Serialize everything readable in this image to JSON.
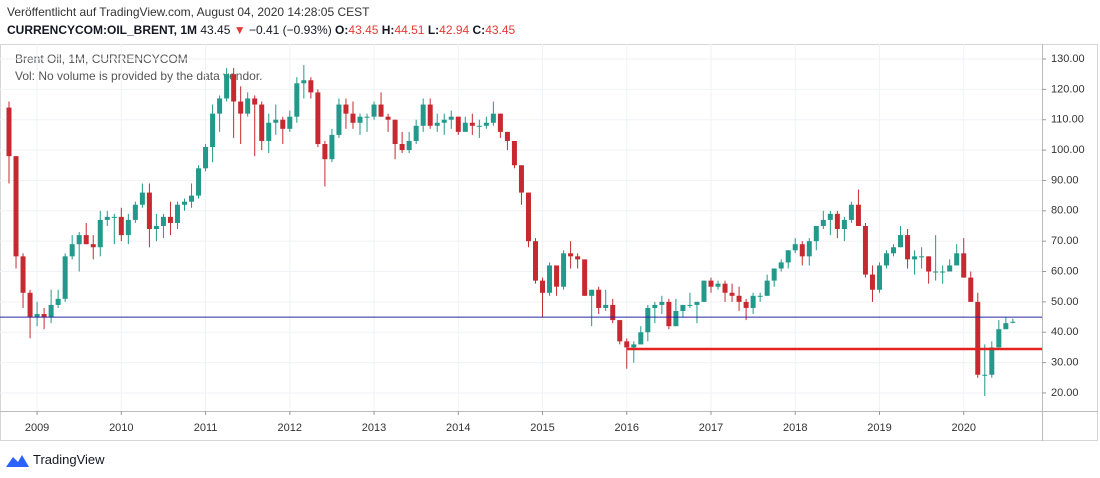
{
  "header": {
    "published": "Veröffentlicht auf TradingView.com, August 04, 2020 14:28:05 CEST",
    "symbol": "CURRENCYCOM:OIL_BRENT, 1M",
    "last": "43.45",
    "arrow": "▼",
    "change": "−0.41 (−0.93%)",
    "ohlc": [
      {
        "label": "O:",
        "value": "43.45"
      },
      {
        "label": "H:",
        "value": "44.51"
      },
      {
        "label": "L:",
        "value": "42.94"
      },
      {
        "label": "C:",
        "value": "43.45"
      }
    ]
  },
  "footer": {
    "brand": "TradingView"
  },
  "chart_data": {
    "type": "candlestick",
    "legend": "Brent Oil, 1M, CURRENCYCOM",
    "volume_note": "Vol: No volume is provided by the data vendor.",
    "up_color": "#22998a",
    "down_color": "#c62a30",
    "ylim": [
      14.06,
      134.94
    ],
    "yticks": [
      {
        "value": 20,
        "label": "20.00"
      },
      {
        "value": 30,
        "label": "30.00"
      },
      {
        "value": 40,
        "label": "40.00"
      },
      {
        "value": 50,
        "label": "50.00"
      },
      {
        "value": 60,
        "label": "60.00"
      },
      {
        "value": 70,
        "label": "70.00"
      },
      {
        "value": 80,
        "label": "80.00"
      },
      {
        "value": 90,
        "label": "90.00"
      },
      {
        "value": 100,
        "label": "100.00"
      },
      {
        "value": 110,
        "label": "110.00"
      },
      {
        "value": 120,
        "label": "120.00"
      },
      {
        "value": 130,
        "label": "130.00"
      }
    ],
    "grid": true,
    "hlines": [
      {
        "value": 45,
        "color": "#2626a8",
        "width": 1,
        "start": 0
      },
      {
        "value": 34.5,
        "color": "#e52222",
        "width": 2.5,
        "start": 88
      }
    ],
    "categories": [
      null,
      null,
      null,
      null,
      "2009",
      null,
      null,
      null,
      null,
      null,
      null,
      null,
      null,
      null,
      null,
      null,
      "2010",
      null,
      null,
      null,
      null,
      null,
      null,
      null,
      null,
      null,
      null,
      null,
      "2011",
      null,
      null,
      null,
      null,
      null,
      null,
      null,
      null,
      null,
      null,
      null,
      "2012",
      null,
      null,
      null,
      null,
      null,
      null,
      null,
      null,
      null,
      null,
      null,
      "2013",
      null,
      null,
      null,
      null,
      null,
      null,
      null,
      null,
      null,
      null,
      null,
      "2014",
      null,
      null,
      null,
      null,
      null,
      null,
      null,
      null,
      null,
      null,
      null,
      "2015",
      null,
      null,
      null,
      null,
      null,
      null,
      null,
      null,
      null,
      null,
      null,
      "2016",
      null,
      null,
      null,
      null,
      null,
      null,
      null,
      null,
      null,
      null,
      null,
      "2017",
      null,
      null,
      null,
      null,
      null,
      null,
      null,
      null,
      null,
      null,
      null,
      "2018",
      null,
      null,
      null,
      null,
      null,
      null,
      null,
      null,
      null,
      null,
      null,
      "2019",
      null,
      null,
      null,
      null,
      null,
      null,
      null,
      null,
      null,
      null,
      null,
      "2020",
      null,
      null,
      null,
      null,
      null,
      null,
      null
    ],
    "open": [
      114,
      98,
      65,
      53,
      45,
      46,
      45,
      49,
      51,
      65,
      69,
      72,
      69,
      68,
      77,
      78,
      78,
      72,
      77,
      82,
      86,
      74,
      75,
      78,
      76,
      82,
      83,
      85,
      94,
      101,
      112,
      117,
      125,
      116,
      112,
      117,
      115,
      103,
      109,
      110,
      107,
      111,
      122,
      123,
      119,
      102,
      97,
      105,
      115,
      112,
      109,
      111,
      111,
      115,
      111,
      110,
      102,
      100,
      103,
      108,
      115,
      108,
      109,
      110,
      111,
      106,
      109,
      108,
      108,
      109,
      112,
      106,
      103,
      95,
      86,
      70,
      57,
      53,
      62,
      55,
      66,
      65,
      64,
      52,
      54,
      48,
      49,
      44,
      37,
      35,
      36,
      40,
      48,
      49,
      50,
      42,
      47,
      49,
      49,
      50,
      57,
      55,
      56,
      53,
      52,
      50,
      48,
      52,
      52,
      57,
      61,
      63,
      67,
      69,
      65,
      70,
      75,
      77,
      79,
      74,
      77,
      82,
      75,
      59,
      54,
      62,
      66,
      68,
      72,
      64,
      65,
      65,
      60,
      60,
      60,
      62,
      66,
      58,
      50,
      26,
      26,
      35,
      41,
      43.45
    ],
    "high": [
      116,
      98,
      66,
      54,
      50,
      48,
      54,
      54,
      66,
      72,
      73,
      76,
      72,
      80,
      80,
      79,
      81,
      79,
      83,
      89,
      89,
      79,
      79,
      83,
      83,
      84,
      89,
      95,
      102,
      115,
      118,
      127,
      127,
      121,
      119,
      118,
      116,
      112,
      115,
      111,
      113,
      124,
      128,
      124,
      120,
      103,
      107,
      117,
      117,
      116,
      112,
      112,
      116,
      119,
      112,
      110,
      106,
      106,
      110,
      117,
      117,
      112,
      112,
      113,
      111,
      111,
      112,
      110,
      111,
      116,
      112,
      106,
      103,
      95,
      86,
      71,
      58,
      63,
      62,
      67,
      70,
      66,
      64,
      54,
      55,
      54,
      51,
      44,
      38,
      37,
      42,
      49,
      50,
      52,
      51,
      51,
      49,
      53,
      50,
      57,
      58,
      57,
      57,
      56,
      55,
      51,
      53,
      53,
      59,
      61,
      64,
      67,
      71,
      70,
      71,
      75,
      80,
      80,
      80,
      78,
      83,
      87,
      76,
      62,
      63,
      67,
      69,
      75,
      74,
      67,
      68,
      65,
      72,
      62,
      64,
      69,
      71,
      60,
      53,
      36,
      37,
      44,
      45,
      44.51
    ],
    "low": [
      89,
      61,
      48,
      38,
      42,
      41,
      43,
      48,
      50,
      64,
      60,
      69,
      64,
      65,
      75,
      69,
      70,
      69,
      76,
      81,
      68,
      70,
      71,
      72,
      74,
      80,
      81,
      84,
      93,
      96,
      106,
      116,
      104,
      102,
      111,
      98,
      100,
      99,
      105,
      102,
      106,
      109,
      117,
      117,
      101,
      88,
      96,
      104,
      107,
      107,
      105,
      106,
      110,
      111,
      106,
      97,
      99,
      99,
      102,
      106,
      107,
      106,
      105,
      107,
      105,
      106,
      105,
      104,
      107,
      108,
      104,
      100,
      94,
      82,
      68,
      56,
      45,
      52,
      52,
      54,
      61,
      61,
      52,
      42,
      46,
      47,
      43,
      36,
      28,
      30,
      36,
      37,
      43,
      46,
      41,
      42,
      45,
      48,
      43,
      50,
      53,
      54,
      50,
      50,
      47,
      44,
      46,
      50,
      52,
      55,
      60,
      61,
      66,
      62,
      62,
      67,
      74,
      72,
      71,
      70,
      76,
      75,
      58,
      50,
      53,
      61,
      65,
      68,
      61,
      59,
      61,
      56,
      57,
      56,
      60,
      62,
      58,
      50,
      25,
      19,
      25,
      35,
      41,
      42.94
    ],
    "close": [
      98,
      65,
      53,
      45,
      46,
      45,
      49,
      51,
      65,
      69,
      72,
      69,
      68,
      77,
      78,
      78,
      72,
      77,
      82,
      86,
      74,
      75,
      78,
      76,
      82,
      83,
      85,
      94,
      101,
      112,
      117,
      125,
      116,
      112,
      117,
      115,
      103,
      109,
      110,
      107,
      111,
      122,
      123,
      119,
      102,
      97,
      105,
      115,
      112,
      109,
      111,
      111,
      115,
      111,
      110,
      102,
      100,
      103,
      108,
      115,
      108,
      109,
      110,
      111,
      106,
      109,
      108,
      108,
      109,
      112,
      106,
      103,
      95,
      86,
      70,
      57,
      53,
      62,
      55,
      66,
      65,
      64,
      52,
      54,
      48,
      49,
      44,
      37,
      35,
      36,
      40,
      48,
      49,
      50,
      42,
      47,
      49,
      49,
      50,
      57,
      55,
      56,
      53,
      52,
      50,
      48,
      52,
      52,
      57,
      61,
      63,
      67,
      69,
      65,
      70,
      75,
      77,
      79,
      74,
      77,
      82,
      75,
      59,
      54,
      62,
      66,
      68,
      72,
      64,
      65,
      65,
      60,
      60,
      60,
      62,
      66,
      58,
      50,
      26,
      26,
      35,
      41,
      43,
      43.45
    ]
  }
}
